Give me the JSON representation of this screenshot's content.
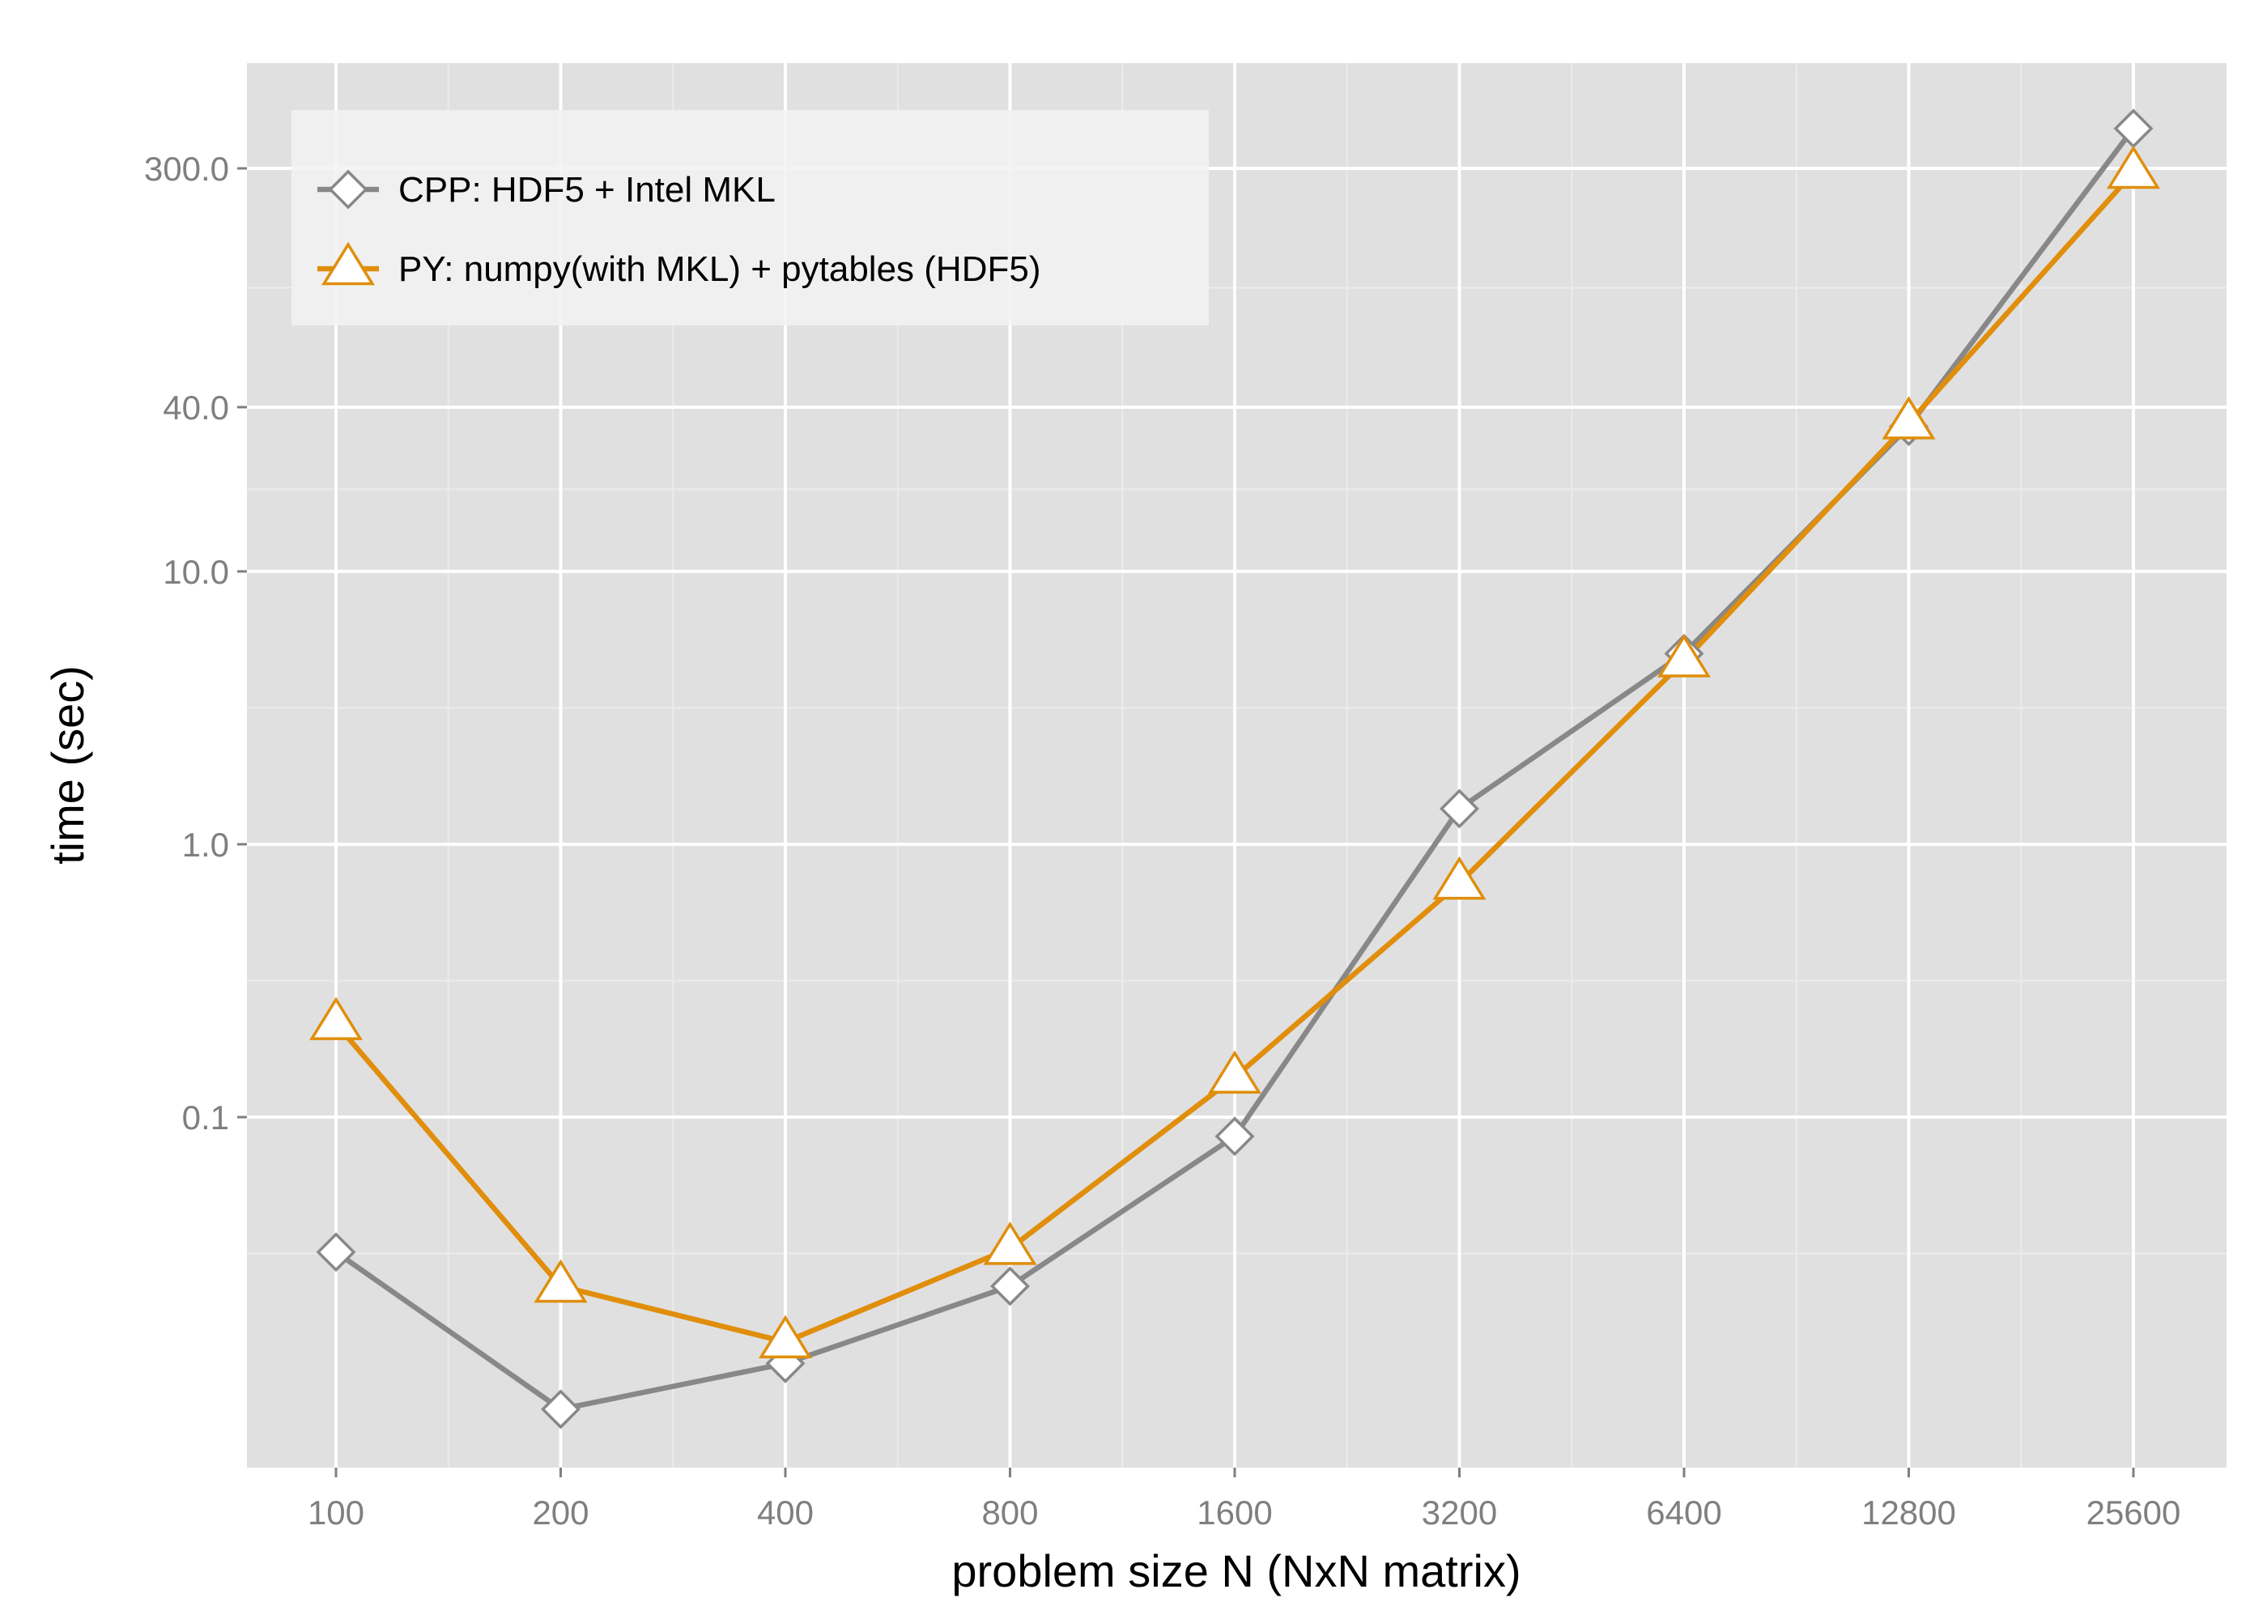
{
  "chart_data": {
    "type": "line",
    "title": "",
    "xlabel": "problem size N (NxN matrix)",
    "ylabel": "time (sec)",
    "x_scale": "log2",
    "y_scale": "log10",
    "categories": [
      "100",
      "200",
      "400",
      "800",
      "1600",
      "3200",
      "6400",
      "12800",
      "25600"
    ],
    "x": [
      100,
      200,
      400,
      800,
      1600,
      3200,
      6400,
      12800,
      25600
    ],
    "y_ticks": [
      0.1,
      1.0,
      10.0,
      40.0,
      300.0
    ],
    "y_tick_labels": [
      "0.1",
      "1.0",
      "10.0",
      "40.0",
      "300.0"
    ],
    "ylim": [
      0.005,
      600
    ],
    "grid": true,
    "legend_position": "top-left",
    "series": [
      {
        "name": "CPP: HDF5 + Intel MKL",
        "color": "#888888",
        "marker": "diamond",
        "values": [
          0.032,
          0.0085,
          0.0125,
          0.024,
          0.085,
          1.35,
          5.0,
          34.0,
          420.0
        ]
      },
      {
        "name": "PY: numpy(with MKL) + pytables (HDF5)",
        "color": "#e08e0b",
        "marker": "triangle",
        "values": [
          0.22,
          0.024,
          0.015,
          0.033,
          0.14,
          0.72,
          4.7,
          35.0,
          290.0
        ]
      }
    ]
  }
}
